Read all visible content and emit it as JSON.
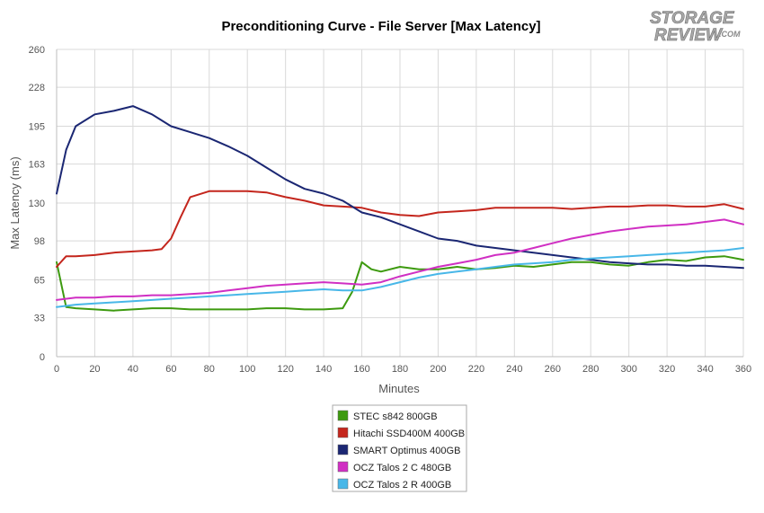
{
  "chart_data": {
    "type": "line",
    "title": "Preconditioning Curve - File Server [Max Latency]",
    "xlabel": "Minutes",
    "ylabel": "Max Latency (ms)",
    "xlim": [
      0,
      360
    ],
    "ylim": [
      0,
      260
    ],
    "x_ticks": [
      0,
      20,
      40,
      60,
      80,
      100,
      120,
      140,
      160,
      180,
      200,
      220,
      240,
      260,
      280,
      300,
      320,
      340,
      360
    ],
    "y_ticks": [
      0,
      33,
      65,
      98,
      130,
      163,
      195,
      228,
      260
    ],
    "grid": true,
    "legend_position": "bottom",
    "series": [
      {
        "name": "STEC s842 800GB",
        "color": "#3d9a0f",
        "points": [
          [
            0,
            80
          ],
          [
            5,
            42
          ],
          [
            10,
            41
          ],
          [
            20,
            40
          ],
          [
            30,
            39
          ],
          [
            40,
            40
          ],
          [
            50,
            41
          ],
          [
            60,
            41
          ],
          [
            70,
            40
          ],
          [
            80,
            40
          ],
          [
            90,
            40
          ],
          [
            100,
            40
          ],
          [
            110,
            41
          ],
          [
            120,
            41
          ],
          [
            130,
            40
          ],
          [
            140,
            40
          ],
          [
            150,
            41
          ],
          [
            155,
            55
          ],
          [
            160,
            80
          ],
          [
            165,
            74
          ],
          [
            170,
            72
          ],
          [
            180,
            76
          ],
          [
            190,
            74
          ],
          [
            200,
            74
          ],
          [
            210,
            76
          ],
          [
            220,
            74
          ],
          [
            230,
            75
          ],
          [
            240,
            77
          ],
          [
            250,
            76
          ],
          [
            260,
            78
          ],
          [
            270,
            80
          ],
          [
            280,
            80
          ],
          [
            290,
            78
          ],
          [
            300,
            77
          ],
          [
            310,
            80
          ],
          [
            320,
            82
          ],
          [
            330,
            81
          ],
          [
            340,
            84
          ],
          [
            350,
            85
          ],
          [
            360,
            82
          ]
        ]
      },
      {
        "name": "Hitachi SSD400M 400GB",
        "color": "#c4261d",
        "points": [
          [
            0,
            76
          ],
          [
            5,
            85
          ],
          [
            10,
            85
          ],
          [
            20,
            86
          ],
          [
            30,
            88
          ],
          [
            40,
            89
          ],
          [
            50,
            90
          ],
          [
            55,
            91
          ],
          [
            60,
            100
          ],
          [
            65,
            118
          ],
          [
            70,
            135
          ],
          [
            80,
            140
          ],
          [
            90,
            140
          ],
          [
            100,
            140
          ],
          [
            110,
            139
          ],
          [
            120,
            135
          ],
          [
            130,
            132
          ],
          [
            140,
            128
          ],
          [
            150,
            127
          ],
          [
            160,
            126
          ],
          [
            170,
            122
          ],
          [
            180,
            120
          ],
          [
            190,
            119
          ],
          [
            200,
            122
          ],
          [
            210,
            123
          ],
          [
            220,
            124
          ],
          [
            230,
            126
          ],
          [
            240,
            126
          ],
          [
            250,
            126
          ],
          [
            260,
            126
          ],
          [
            270,
            125
          ],
          [
            280,
            126
          ],
          [
            290,
            127
          ],
          [
            300,
            127
          ],
          [
            310,
            128
          ],
          [
            320,
            128
          ],
          [
            330,
            127
          ],
          [
            340,
            127
          ],
          [
            350,
            129
          ],
          [
            360,
            125
          ]
        ]
      },
      {
        "name": "SMART Optimus 400GB",
        "color": "#1b2773",
        "points": [
          [
            0,
            138
          ],
          [
            5,
            175
          ],
          [
            10,
            195
          ],
          [
            20,
            205
          ],
          [
            30,
            208
          ],
          [
            40,
            212
          ],
          [
            50,
            205
          ],
          [
            60,
            195
          ],
          [
            70,
            190
          ],
          [
            80,
            185
          ],
          [
            90,
            178
          ],
          [
            100,
            170
          ],
          [
            110,
            160
          ],
          [
            120,
            150
          ],
          [
            130,
            142
          ],
          [
            140,
            138
          ],
          [
            150,
            132
          ],
          [
            160,
            122
          ],
          [
            170,
            118
          ],
          [
            180,
            112
          ],
          [
            190,
            106
          ],
          [
            200,
            100
          ],
          [
            210,
            98
          ],
          [
            220,
            94
          ],
          [
            230,
            92
          ],
          [
            240,
            90
          ],
          [
            250,
            88
          ],
          [
            260,
            86
          ],
          [
            270,
            84
          ],
          [
            280,
            82
          ],
          [
            290,
            80
          ],
          [
            300,
            79
          ],
          [
            310,
            78
          ],
          [
            320,
            78
          ],
          [
            330,
            77
          ],
          [
            340,
            77
          ],
          [
            350,
            76
          ],
          [
            360,
            75
          ]
        ]
      },
      {
        "name": "OCZ Talos 2 C 480GB",
        "color": "#d02fc3",
        "points": [
          [
            0,
            48
          ],
          [
            10,
            50
          ],
          [
            20,
            50
          ],
          [
            30,
            51
          ],
          [
            40,
            51
          ],
          [
            50,
            52
          ],
          [
            60,
            52
          ],
          [
            70,
            53
          ],
          [
            80,
            54
          ],
          [
            90,
            56
          ],
          [
            100,
            58
          ],
          [
            110,
            60
          ],
          [
            120,
            61
          ],
          [
            130,
            62
          ],
          [
            140,
            63
          ],
          [
            150,
            62
          ],
          [
            160,
            61
          ],
          [
            170,
            63
          ],
          [
            180,
            68
          ],
          [
            190,
            72
          ],
          [
            200,
            76
          ],
          [
            210,
            79
          ],
          [
            220,
            82
          ],
          [
            230,
            86
          ],
          [
            240,
            88
          ],
          [
            250,
            92
          ],
          [
            260,
            96
          ],
          [
            270,
            100
          ],
          [
            280,
            103
          ],
          [
            290,
            106
          ],
          [
            300,
            108
          ],
          [
            310,
            110
          ],
          [
            320,
            111
          ],
          [
            330,
            112
          ],
          [
            340,
            114
          ],
          [
            350,
            116
          ],
          [
            360,
            112
          ]
        ]
      },
      {
        "name": "OCZ Talos 2 R 400GB",
        "color": "#48b7e8",
        "points": [
          [
            0,
            42
          ],
          [
            10,
            44
          ],
          [
            20,
            45
          ],
          [
            30,
            46
          ],
          [
            40,
            47
          ],
          [
            50,
            48
          ],
          [
            60,
            49
          ],
          [
            70,
            50
          ],
          [
            80,
            51
          ],
          [
            90,
            52
          ],
          [
            100,
            53
          ],
          [
            110,
            54
          ],
          [
            120,
            55
          ],
          [
            130,
            56
          ],
          [
            140,
            57
          ],
          [
            150,
            56
          ],
          [
            160,
            56
          ],
          [
            170,
            59
          ],
          [
            180,
            63
          ],
          [
            190,
            67
          ],
          [
            200,
            70
          ],
          [
            210,
            72
          ],
          [
            220,
            74
          ],
          [
            230,
            76
          ],
          [
            240,
            78
          ],
          [
            250,
            79
          ],
          [
            260,
            80
          ],
          [
            270,
            82
          ],
          [
            280,
            83
          ],
          [
            290,
            84
          ],
          [
            300,
            85
          ],
          [
            310,
            86
          ],
          [
            320,
            87
          ],
          [
            330,
            88
          ],
          [
            340,
            89
          ],
          [
            350,
            90
          ],
          [
            360,
            92
          ]
        ]
      }
    ]
  }
}
